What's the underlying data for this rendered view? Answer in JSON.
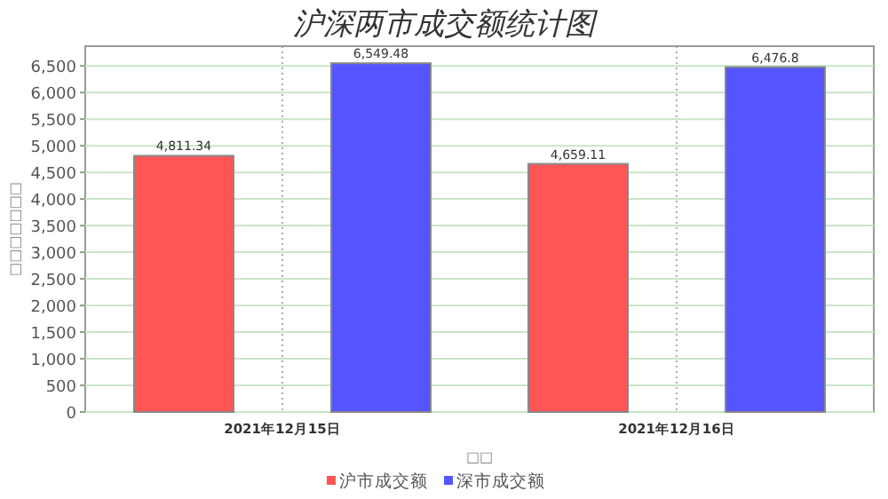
{
  "chart_data": {
    "type": "bar",
    "title": "沪深两市成交额统计图",
    "xlabel": "□□",
    "ylabel": "□□□□□□□",
    "categories": [
      "2021年12月15日",
      "2021年12月16日"
    ],
    "series": [
      {
        "name": "沪市成交额",
        "color": "#ff5555",
        "values": [
          4811.34,
          4659.11
        ]
      },
      {
        "name": "深市成交额",
        "color": "#5555ff",
        "values": [
          6549.48,
          6476.8
        ]
      }
    ],
    "value_labels": [
      [
        "4,811.34",
        "4,659.11"
      ],
      [
        "6,549.48",
        "6,476.8"
      ]
    ],
    "ylim": [
      0,
      6870
    ],
    "yticks": [
      {
        "value": 0,
        "label": "0"
      },
      {
        "value": 500,
        "label": "500"
      },
      {
        "value": 1000,
        "label": "1,000"
      },
      {
        "value": 1500,
        "label": "1,500"
      },
      {
        "value": 2000,
        "label": "2,000"
      },
      {
        "value": 2500,
        "label": "2,500"
      },
      {
        "value": 3000,
        "label": "3,000"
      },
      {
        "value": 3500,
        "label": "3,500"
      },
      {
        "value": 4000,
        "label": "4,000"
      },
      {
        "value": 4500,
        "label": "4,500"
      },
      {
        "value": 5000,
        "label": "5,000"
      },
      {
        "value": 5500,
        "label": "5,500"
      },
      {
        "value": 6000,
        "label": "6,000"
      },
      {
        "value": 6500,
        "label": "6,500"
      }
    ],
    "grid": true,
    "legend": "bottom"
  }
}
